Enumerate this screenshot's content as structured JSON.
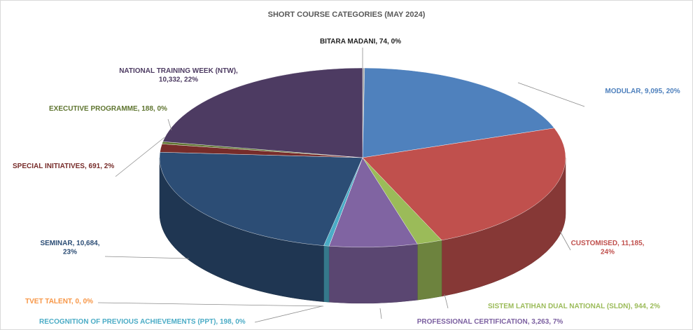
{
  "chart_data": {
    "type": "pie3d",
    "title": "SHORT COURSE CATEGORIES (MAY 2024)",
    "values": [
      74,
      9095,
      11185,
      944,
      3263,
      0,
      198,
      10684,
      691,
      188,
      10332
    ],
    "value_labels": [
      "BITARA MADANI, 74, 0%",
      "MODULAR, 9,095, 20%",
      "CUSTOMISED, 11,185,\n24%",
      "SISTEM LATIHAN DUAL NATIONAL (SLDN), 944, 2%",
      "PROFESSIONAL CERTIFICATION, 3,263, 7%",
      "TVET TALENT, 0, 0%",
      "RECOGNITION OF PREVIOUS ACHIEVEMENTS (PPT), 198, 0%",
      "SEMINAR, 10,684,\n23%",
      "SPECIAL INITIATIVES, 691, 2%",
      "EXECUTIVE PROGRAMME, 188, 0%",
      "NATIONAL TRAINING WEEK (NTW),\n10,332, 22%"
    ],
    "colors": [
      "#a5a5a5",
      "#4f81bd",
      "#c0504d",
      "#9bbb59",
      "#8064a2",
      "#f79646",
      "#4bacc6",
      "#2c4d75",
      "#772c2a",
      "#5f7530",
      "#4d3b62"
    ],
    "label_colors": [
      "#222222",
      "#4f81bd",
      "#c0504d",
      "#9bbb59",
      "#7b5fa0",
      "#f79646",
      "#4bacc6",
      "#2c4d75",
      "#772c2a",
      "#5f7530",
      "#4d3b62"
    ]
  }
}
